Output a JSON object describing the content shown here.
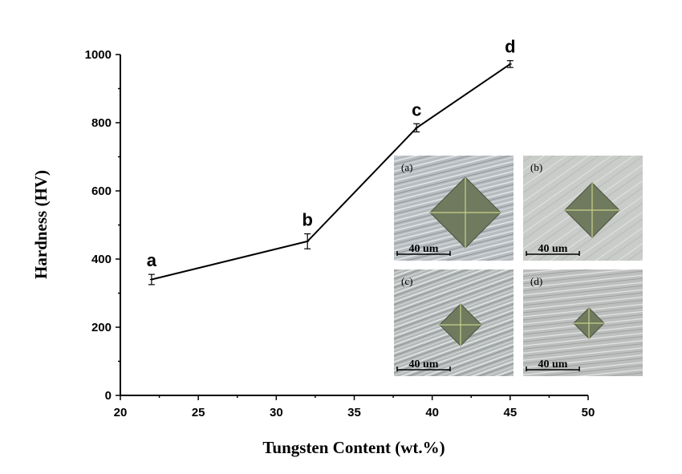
{
  "chart_data": {
    "type": "line",
    "title": "",
    "xlabel": "Tungsten Content (wt.%)",
    "ylabel": "Hardness (HV)",
    "xlim": [
      20,
      50
    ],
    "ylim": [
      0,
      1000
    ],
    "x_ticks": [
      20,
      25,
      30,
      35,
      40,
      45,
      50
    ],
    "y_ticks": [
      0,
      200,
      400,
      600,
      800,
      1000
    ],
    "grid": false,
    "series": [
      {
        "x": [
          22,
          32,
          39,
          45
        ],
        "values": [
          340,
          452,
          785,
          972
        ],
        "errors": [
          15,
          22,
          12,
          10
        ],
        "point_labels": [
          "a",
          "b",
          "c",
          "d"
        ]
      }
    ],
    "insets": [
      {
        "label": "(a)",
        "scale": "40 um"
      },
      {
        "label": "(b)",
        "scale": "40 um"
      },
      {
        "label": "(c)",
        "scale": "40 um"
      },
      {
        "label": "(d)",
        "scale": "40 um"
      }
    ]
  }
}
